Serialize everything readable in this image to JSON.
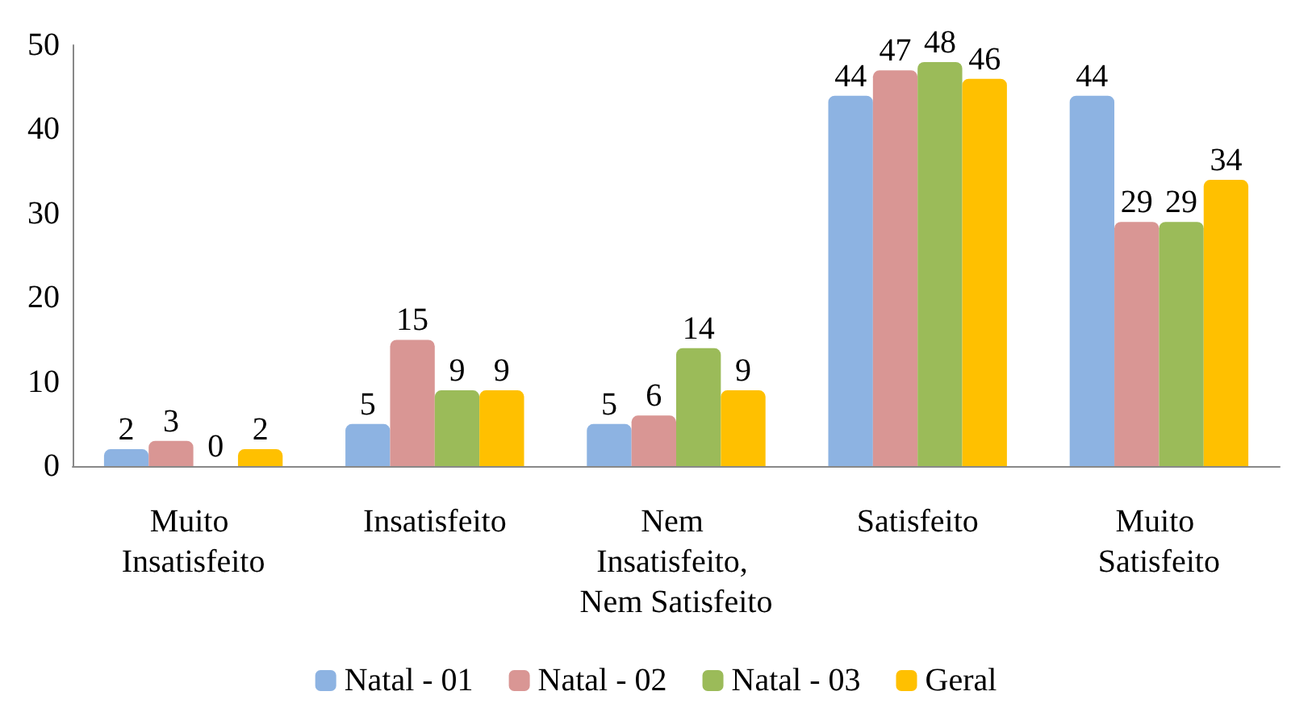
{
  "chart_data": {
    "type": "bar",
    "categories": [
      "Muito Insatisfeito",
      "Insatisfeito",
      "Nem Insatisfeito, Nem Satisfeito",
      "Satisfeito",
      "Muito Satisfeito"
    ],
    "series": [
      {
        "name": "Natal - 01",
        "color": "#8db3e2",
        "values": [
          2,
          5,
          5,
          44,
          44
        ]
      },
      {
        "name": "Natal - 02",
        "color": "#d99694",
        "values": [
          3,
          15,
          6,
          47,
          29
        ]
      },
      {
        "name": "Natal - 03",
        "color": "#9bbb59",
        "values": [
          0,
          9,
          14,
          48,
          29
        ]
      },
      {
        "name": "Geral",
        "color": "#ffc000",
        "values": [
          2,
          9,
          9,
          46,
          34
        ]
      }
    ],
    "ylim": [
      0,
      50
    ],
    "yticks": [
      0,
      10,
      20,
      30,
      40,
      50
    ],
    "data_labels": true,
    "grid": false,
    "legend": "bottom"
  }
}
